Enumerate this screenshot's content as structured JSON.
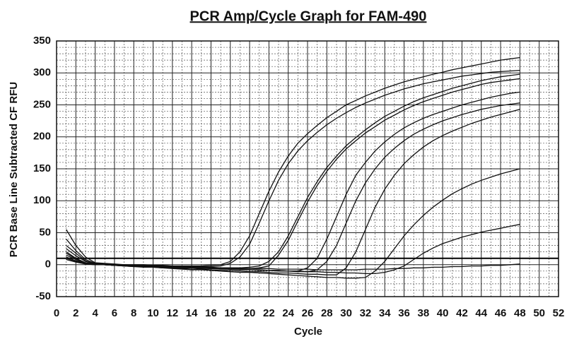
{
  "chart_data": {
    "type": "line",
    "title": "PCR Amp/Cycle Graph for FAM-490",
    "xlabel": "Cycle",
    "ylabel": "PCR Base Line Subtracted CF RFU",
    "x": [
      1,
      2,
      3,
      4,
      5,
      6,
      7,
      8,
      9,
      10,
      11,
      12,
      13,
      14,
      15,
      16,
      17,
      18,
      19,
      20,
      21,
      22,
      23,
      24,
      25,
      26,
      27,
      28,
      29,
      30,
      31,
      32,
      33,
      34,
      35,
      36,
      37,
      38,
      39,
      40,
      41,
      42,
      43,
      44,
      45,
      46,
      47,
      48
    ],
    "series": [
      {
        "color": "#111111",
        "values": [
          55,
          30,
          12,
          3,
          2,
          1,
          0,
          0,
          0,
          -1,
          -1,
          -2,
          -2,
          -2,
          -2,
          -1,
          0,
          5,
          20,
          45,
          80,
          115,
          145,
          170,
          190,
          205,
          218,
          230,
          240,
          250,
          257,
          264,
          270,
          276,
          281,
          286,
          290,
          294,
          298,
          301,
          305,
          308,
          311,
          314,
          317,
          320,
          322,
          324
        ]
      },
      {
        "color": "#111111",
        "values": [
          40,
          22,
          8,
          2,
          1,
          0,
          0,
          -1,
          -1,
          -2,
          -2,
          -3,
          -3,
          -3,
          -3,
          -3,
          -2,
          2,
          12,
          32,
          65,
          100,
          132,
          158,
          178,
          194,
          207,
          219,
          229,
          238,
          246,
          253,
          259,
          265,
          270,
          275,
          279,
          283,
          286,
          289,
          292,
          295,
          297,
          299,
          301,
          302,
          303,
          304
        ]
      },
      {
        "color": "#111111",
        "values": [
          30,
          18,
          6,
          1,
          0,
          0,
          -1,
          -1,
          -2,
          -2,
          -3,
          -3,
          -4,
          -4,
          -5,
          -5,
          -5,
          -5,
          -5,
          -4,
          -2,
          5,
          20,
          45,
          75,
          105,
          130,
          152,
          170,
          186,
          199,
          211,
          222,
          232,
          240,
          248,
          255,
          261,
          266,
          271,
          276,
          280,
          284,
          288,
          291,
          294,
          296,
          298
        ]
      },
      {
        "color": "#111111",
        "values": [
          25,
          14,
          5,
          1,
          0,
          -1,
          -1,
          -2,
          -2,
          -3,
          -3,
          -4,
          -4,
          -5,
          -5,
          -6,
          -6,
          -6,
          -6,
          -6,
          -5,
          -2,
          15,
          38,
          68,
          98,
          124,
          146,
          165,
          181,
          194,
          206,
          216,
          226,
          234,
          242,
          249,
          255,
          260,
          265,
          270,
          274,
          278,
          282,
          285,
          287,
          289,
          291
        ]
      },
      {
        "color": "#111111",
        "values": [
          20,
          10,
          3,
          0,
          0,
          -1,
          -1,
          -2,
          -2,
          -3,
          -3,
          -4,
          -4,
          -5,
          -5,
          -6,
          -6,
          -7,
          -7,
          -8,
          -8,
          -9,
          -9,
          -10,
          -10,
          -5,
          10,
          40,
          75,
          110,
          140,
          160,
          178,
          192,
          204,
          214,
          222,
          229,
          235,
          240,
          245,
          250,
          254,
          258,
          262,
          265,
          268,
          270
        ]
      },
      {
        "color": "#111111",
        "values": [
          15,
          8,
          2,
          0,
          0,
          -1,
          -2,
          -2,
          -3,
          -3,
          -4,
          -4,
          -5,
          -5,
          -6,
          -6,
          -7,
          -7,
          -8,
          -8,
          -9,
          -9,
          -10,
          -10,
          -11,
          -11,
          -8,
          5,
          30,
          65,
          100,
          128,
          150,
          168,
          182,
          194,
          204,
          212,
          219,
          225,
          230,
          235,
          239,
          243,
          246,
          249,
          251,
          253
        ]
      },
      {
        "color": "#111111",
        "values": [
          12,
          6,
          2,
          0,
          0,
          -1,
          -2,
          -3,
          -3,
          -4,
          -5,
          -5,
          -6,
          -7,
          -7,
          -8,
          -9,
          -9,
          -10,
          -11,
          -11,
          -12,
          -13,
          -13,
          -14,
          -15,
          -15,
          -16,
          -16,
          -5,
          20,
          55,
          90,
          118,
          140,
          158,
          172,
          184,
          194,
          202,
          209,
          215,
          221,
          226,
          231,
          235,
          239,
          243
        ]
      },
      {
        "color": "#111111",
        "values": [
          18,
          9,
          3,
          1,
          0,
          -1,
          -2,
          -3,
          -4,
          -4,
          -5,
          -6,
          -7,
          -8,
          -8,
          -9,
          -10,
          -11,
          -12,
          -12,
          -13,
          -14,
          -15,
          -16,
          -17,
          -18,
          -19,
          -20,
          -20,
          -21,
          -21,
          -20,
          -10,
          5,
          25,
          45,
          62,
          77,
          90,
          101,
          111,
          119,
          126,
          132,
          137,
          142,
          146,
          150
        ]
      },
      {
        "color": "#111111",
        "values": [
          10,
          5,
          1,
          0,
          0,
          -1,
          -1,
          -2,
          -2,
          -3,
          -3,
          -4,
          -4,
          -5,
          -5,
          -6,
          -6,
          -7,
          -7,
          -8,
          -8,
          -9,
          -9,
          -10,
          -10,
          -11,
          -11,
          -12,
          -12,
          -13,
          -13,
          -14,
          -14,
          -12,
          -8,
          -2,
          8,
          18,
          26,
          33,
          38,
          43,
          47,
          51,
          54,
          57,
          60,
          63
        ]
      },
      {
        "color": "#111111",
        "values": [
          8,
          4,
          1,
          0,
          0,
          -1,
          -1,
          -2,
          -2,
          -2,
          -3,
          -3,
          -3,
          -4,
          -4,
          -4,
          -5,
          -5,
          -5,
          -6,
          -6,
          -6,
          -7,
          -7,
          -7,
          -7,
          -8,
          -8,
          -8,
          -8,
          -8,
          -7,
          -7,
          -7,
          -6,
          -6,
          -5,
          -5,
          -4,
          -4,
          -3,
          -3,
          -2,
          -2,
          -1,
          -1,
          0,
          1
        ]
      }
    ],
    "threshold": 10,
    "xlim": [
      0,
      52
    ],
    "xticks": [
      0,
      2,
      4,
      6,
      8,
      10,
      12,
      14,
      16,
      18,
      20,
      22,
      24,
      26,
      28,
      30,
      32,
      34,
      36,
      38,
      40,
      42,
      44,
      46,
      48,
      50,
      52
    ],
    "ylim": [
      -50,
      350
    ],
    "yticks": [
      -50,
      0,
      50,
      100,
      150,
      200,
      250,
      300,
      350
    ],
    "grid": true
  }
}
